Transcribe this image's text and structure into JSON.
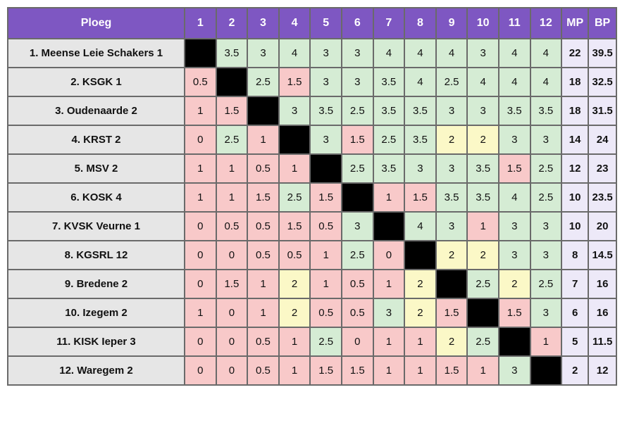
{
  "table": {
    "header_team": "Ploeg",
    "columns": [
      "1",
      "2",
      "3",
      "4",
      "5",
      "6",
      "7",
      "8",
      "9",
      "10",
      "11",
      "12"
    ],
    "header_mp": "MP",
    "header_bp": "BP",
    "colors": {
      "header": "#7e57c2",
      "win": "#d5ecd4",
      "loss": "#f8c9c9",
      "draw": "#fbf8c7",
      "self": "#000000",
      "team_cell": "#e6e6e6",
      "totals": "#ede9f8"
    },
    "rows": [
      {
        "team": "1. Meense Leie Schakers 1",
        "scores": [
          "",
          "3.5",
          "3",
          "4",
          "3",
          "3",
          "4",
          "4",
          "4",
          "3",
          "4",
          "4"
        ],
        "mp": "22",
        "bp": "39.5"
      },
      {
        "team": "2. KSGK 1",
        "scores": [
          "0.5",
          "",
          "2.5",
          "1.5",
          "3",
          "3",
          "3.5",
          "4",
          "2.5",
          "4",
          "4",
          "4"
        ],
        "mp": "18",
        "bp": "32.5"
      },
      {
        "team": "3. Oudenaarde 2",
        "scores": [
          "1",
          "1.5",
          "",
          "3",
          "3.5",
          "2.5",
          "3.5",
          "3.5",
          "3",
          "3",
          "3.5",
          "3.5"
        ],
        "mp": "18",
        "bp": "31.5"
      },
      {
        "team": "4. KRST 2",
        "scores": [
          "0",
          "2.5",
          "1",
          "",
          "3",
          "1.5",
          "2.5",
          "3.5",
          "2",
          "2",
          "3",
          "3"
        ],
        "mp": "14",
        "bp": "24"
      },
      {
        "team": "5. MSV 2",
        "scores": [
          "1",
          "1",
          "0.5",
          "1",
          "",
          "2.5",
          "3.5",
          "3",
          "3",
          "3.5",
          "1.5",
          "2.5"
        ],
        "mp": "12",
        "bp": "23"
      },
      {
        "team": "6. KOSK 4",
        "scores": [
          "1",
          "1",
          "1.5",
          "2.5",
          "1.5",
          "",
          "1",
          "1.5",
          "3.5",
          "3.5",
          "4",
          "2.5"
        ],
        "mp": "10",
        "bp": "23.5"
      },
      {
        "team": "7. KVSK Veurne 1",
        "scores": [
          "0",
          "0.5",
          "0.5",
          "1.5",
          "0.5",
          "3",
          "",
          "4",
          "3",
          "1",
          "3",
          "3"
        ],
        "mp": "10",
        "bp": "20"
      },
      {
        "team": "8. KGSRL 12",
        "scores": [
          "0",
          "0",
          "0.5",
          "0.5",
          "1",
          "2.5",
          "0",
          "",
          "2",
          "2",
          "3",
          "3"
        ],
        "mp": "8",
        "bp": "14.5"
      },
      {
        "team": "9. Bredene 2",
        "scores": [
          "0",
          "1.5",
          "1",
          "2",
          "1",
          "0.5",
          "1",
          "2",
          "",
          "2.5",
          "2",
          "2.5"
        ],
        "mp": "7",
        "bp": "16"
      },
      {
        "team": "10. Izegem 2",
        "scores": [
          "1",
          "0",
          "1",
          "2",
          "0.5",
          "0.5",
          "3",
          "2",
          "1.5",
          "",
          "1.5",
          "3"
        ],
        "mp": "6",
        "bp": "16"
      },
      {
        "team": "11. KISK Ieper 3",
        "scores": [
          "0",
          "0",
          "0.5",
          "1",
          "2.5",
          "0",
          "1",
          "1",
          "2",
          "2.5",
          "",
          "1"
        ],
        "mp": "5",
        "bp": "11.5"
      },
      {
        "team": "12. Waregem 2",
        "scores": [
          "0",
          "0",
          "0.5",
          "1",
          "1.5",
          "1.5",
          "1",
          "1",
          "1.5",
          "1",
          "3",
          ""
        ],
        "mp": "2",
        "bp": "12"
      }
    ]
  }
}
